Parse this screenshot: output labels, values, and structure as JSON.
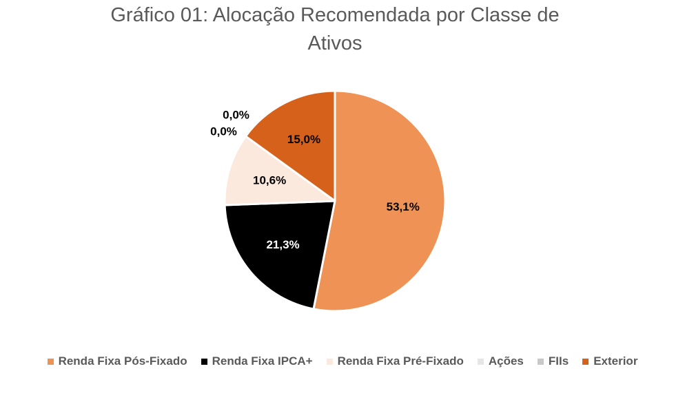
{
  "chart_data": {
    "type": "pie",
    "title": "Gráfico 01: Alocação Recomendada por Classe de\nAtivos",
    "categories": [
      "Renda Fixa Pós-Fixado",
      "Renda Fixa IPCA+",
      "Renda Fixa Pré-Fixado",
      "Ações",
      "FIIs",
      "Exterior"
    ],
    "values": [
      53.1,
      21.3,
      10.6,
      0.0,
      0.0,
      15.0
    ],
    "data_labels": [
      "53,1%",
      "21,3%",
      "10,6%",
      "0,0%",
      "0,0%",
      "15,0%"
    ],
    "colors": [
      "#EE9355",
      "#000000",
      "#FCE9DD",
      "#E7E6E6",
      "#C8C8C8",
      "#D6611B"
    ],
    "label_colors": [
      "#000000",
      "#ffffff",
      "#000000",
      "#000000",
      "#000000",
      "#000000"
    ],
    "legend_position": "bottom",
    "start_angle": "top",
    "direction": "clockwise"
  }
}
